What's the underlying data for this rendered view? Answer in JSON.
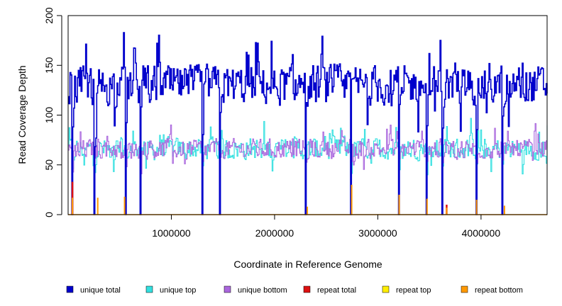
{
  "chart_data": {
    "type": "line",
    "title": "",
    "xlabel": "Coordinate in Reference Genome",
    "ylabel": "Read Coverage Depth",
    "xlim": [
      0,
      4640000
    ],
    "ylim": [
      0,
      200
    ],
    "x_ticks": [
      1000000,
      2000000,
      3000000,
      4000000
    ],
    "x_tick_labels": [
      "1000000",
      "2000000",
      "3000000",
      "4000000"
    ],
    "y_ticks": [
      0,
      50,
      100,
      150,
      200
    ],
    "y_tick_labels": [
      "0",
      "50",
      "100",
      "150",
      "200"
    ],
    "grid": false,
    "legend_position": "bottom",
    "n_points": 520,
    "series": [
      {
        "name": "unique total",
        "color": "#0000cc",
        "level": 130,
        "spread": 18
      },
      {
        "name": "unique top",
        "color": "#33e0e0",
        "level": 66,
        "spread": 10
      },
      {
        "name": "unique bottom",
        "color": "#aa66dd",
        "level": 66,
        "spread": 9
      },
      {
        "name": "repeat total",
        "color": "#dd1111",
        "level": 0,
        "spread": 0
      },
      {
        "name": "repeat top",
        "color": "#ffee00",
        "level": 0,
        "spread": 0
      },
      {
        "name": "repeat bottom",
        "color": "#ff9900",
        "level": 0,
        "spread": 0
      }
    ],
    "dropouts_x": [
      40000,
      250000,
      550000,
      700000,
      1300000,
      1470000,
      2300000,
      2740000,
      3200000,
      3470000,
      3620000,
      3950000,
      4200000
    ],
    "repeat_spikes": [
      {
        "x": 35000,
        "repeat_total": 33,
        "repeat_bottom": 17
      },
      {
        "x": 280000,
        "repeat_total": 0,
        "repeat_bottom": 17
      },
      {
        "x": 540000,
        "repeat_total": 0,
        "repeat_bottom": 18
      },
      {
        "x": 2310000,
        "repeat_total": 0,
        "repeat_bottom": 8
      },
      {
        "x": 2740000,
        "repeat_total": 0,
        "repeat_bottom": 30
      },
      {
        "x": 3200000,
        "repeat_total": 0,
        "repeat_bottom": 20
      },
      {
        "x": 3470000,
        "repeat_total": 0,
        "repeat_bottom": 16
      },
      {
        "x": 3660000,
        "repeat_total": 10,
        "repeat_bottom": 7
      },
      {
        "x": 3950000,
        "repeat_total": 0,
        "repeat_bottom": 15
      },
      {
        "x": 4220000,
        "repeat_total": 0,
        "repeat_bottom": 9
      }
    ]
  }
}
